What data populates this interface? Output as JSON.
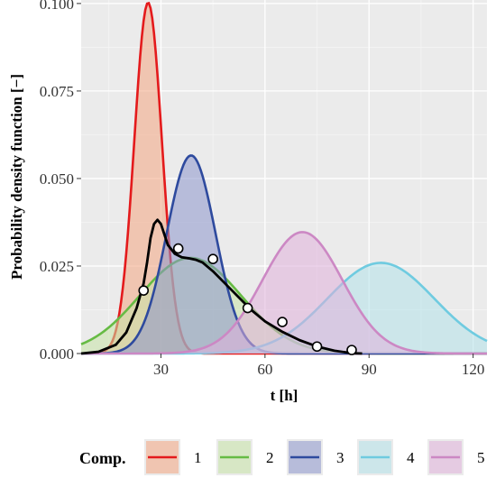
{
  "chart_data": {
    "type": "area",
    "title": "",
    "xlabel": "t [h]",
    "ylabel": "Probability density function [−]",
    "xlim": [
      7,
      124
    ],
    "ylim": [
      0,
      0.101
    ],
    "xticks": [
      30,
      60,
      90,
      120
    ],
    "yticks": [
      0.0,
      0.025,
      0.05,
      0.075,
      0.1
    ],
    "ytick_labels": [
      "0.000",
      "0.025",
      "0.050",
      "0.075",
      "0.100"
    ],
    "grid": true,
    "legend": {
      "title": "Comp.",
      "position": "bottom"
    },
    "series": [
      {
        "name": "1",
        "color": "#e41a1c",
        "fill": "#f4a582",
        "mean": 26.3,
        "sd": 3.98
      },
      {
        "name": "2",
        "color": "#66bb44",
        "fill": "#c7e3a6",
        "mean": 38.5,
        "sd": 14.6
      },
      {
        "name": "3",
        "color": "#2e4a9e",
        "fill": "#8c96cc",
        "mean": 38.7,
        "sd": 7.05
      },
      {
        "name": "4",
        "color": "#6fcbe0",
        "fill": "#b2e2ea",
        "mean": 93.4,
        "sd": 15.4
      },
      {
        "name": "5",
        "color": "#cc88c4",
        "fill": "#e0b0da",
        "mean": 70.8,
        "sd": 11.5
      }
    ],
    "mixture": {
      "color": "#000000",
      "points": [
        [
          7,
          0.0
        ],
        [
          12,
          0.0005
        ],
        [
          17,
          0.0025
        ],
        [
          20,
          0.006
        ],
        [
          23,
          0.013
        ],
        [
          25,
          0.02
        ],
        [
          26,
          0.026
        ],
        [
          27,
          0.033
        ],
        [
          28,
          0.037
        ],
        [
          29,
          0.0382
        ],
        [
          30,
          0.037
        ],
        [
          31,
          0.034
        ],
        [
          32,
          0.031
        ],
        [
          34,
          0.0285
        ],
        [
          36,
          0.0275
        ],
        [
          38,
          0.0272
        ],
        [
          40,
          0.0268
        ],
        [
          42,
          0.026
        ],
        [
          45,
          0.0235
        ],
        [
          48,
          0.0205
        ],
        [
          52,
          0.0165
        ],
        [
          56,
          0.0125
        ],
        [
          60,
          0.0092
        ],
        [
          65,
          0.0062
        ],
        [
          70,
          0.0038
        ],
        [
          75,
          0.002
        ],
        [
          80,
          0.0008
        ],
        [
          85,
          0.0001
        ],
        [
          88,
          0.0
        ]
      ]
    },
    "observations": [
      [
        25,
        0.018
      ],
      [
        35,
        0.03
      ],
      [
        45,
        0.027
      ],
      [
        55,
        0.013
      ],
      [
        65,
        0.009
      ],
      [
        75,
        0.002
      ],
      [
        85,
        0.001
      ]
    ]
  }
}
